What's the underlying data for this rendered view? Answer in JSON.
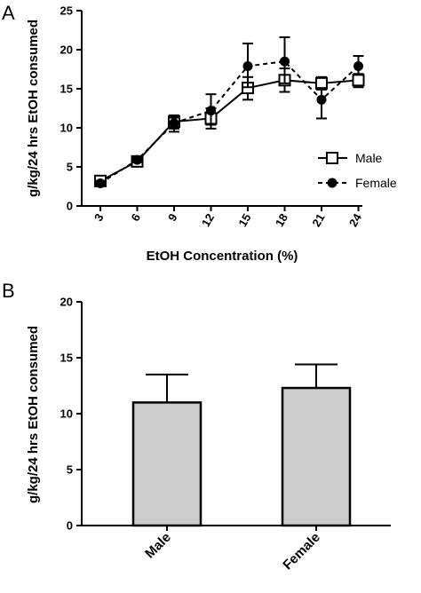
{
  "panels": {
    "a_letter": "A",
    "b_letter": "B"
  },
  "chart_data": [
    {
      "type": "line",
      "panel": "A",
      "xlabel": "EtOH  Concentration  (%)",
      "ylabel": "g/kg/24 hrs EtOH consumed",
      "categories": [
        "3",
        "6",
        "9",
        "12",
        "15",
        "18",
        "21",
        "24"
      ],
      "ylim": [
        0,
        25
      ],
      "yticks": [
        "0",
        "5",
        "10",
        "15",
        "20",
        "25"
      ],
      "legend_position": "right",
      "series": [
        {
          "name": "Male",
          "marker": "open-square",
          "line": "solid",
          "color": "#000000",
          "values": [
            3.2,
            5.7,
            10.8,
            11.2,
            15.1,
            16.1,
            15.7,
            16.1
          ],
          "err_plus": [
            0.4,
            0.4,
            0.8,
            1.3,
            1.4,
            1.5,
            0.8,
            0.8
          ],
          "err_minus": [
            0.4,
            0.4,
            0.9,
            1.3,
            1.5,
            1.5,
            0.8,
            0.9
          ]
        },
        {
          "name": "Female",
          "marker": "filled-circle",
          "line": "dashed",
          "color": "#000000",
          "values": [
            2.9,
            5.9,
            10.6,
            12.2,
            17.9,
            18.5,
            13.6,
            17.9
          ],
          "err_plus": [
            0.3,
            0.3,
            0.7,
            2.1,
            2.9,
            3.1,
            1.5,
            1.3
          ],
          "err_minus": [
            0.3,
            0.3,
            1.1,
            1.8,
            2.7,
            2.8,
            2.4,
            1.1
          ]
        }
      ]
    },
    {
      "type": "bar",
      "panel": "B",
      "ylabel": "g/kg/24 hrs EtOH consumed",
      "categories": [
        "Male",
        "Female"
      ],
      "values": [
        11.0,
        12.3
      ],
      "err_plus": [
        2.5,
        2.1
      ],
      "ylim": [
        0,
        20
      ],
      "yticks": [
        "0",
        "5",
        "10",
        "15",
        "20"
      ],
      "bar_color": "#cccccc",
      "edge_color": "#000000"
    }
  ]
}
